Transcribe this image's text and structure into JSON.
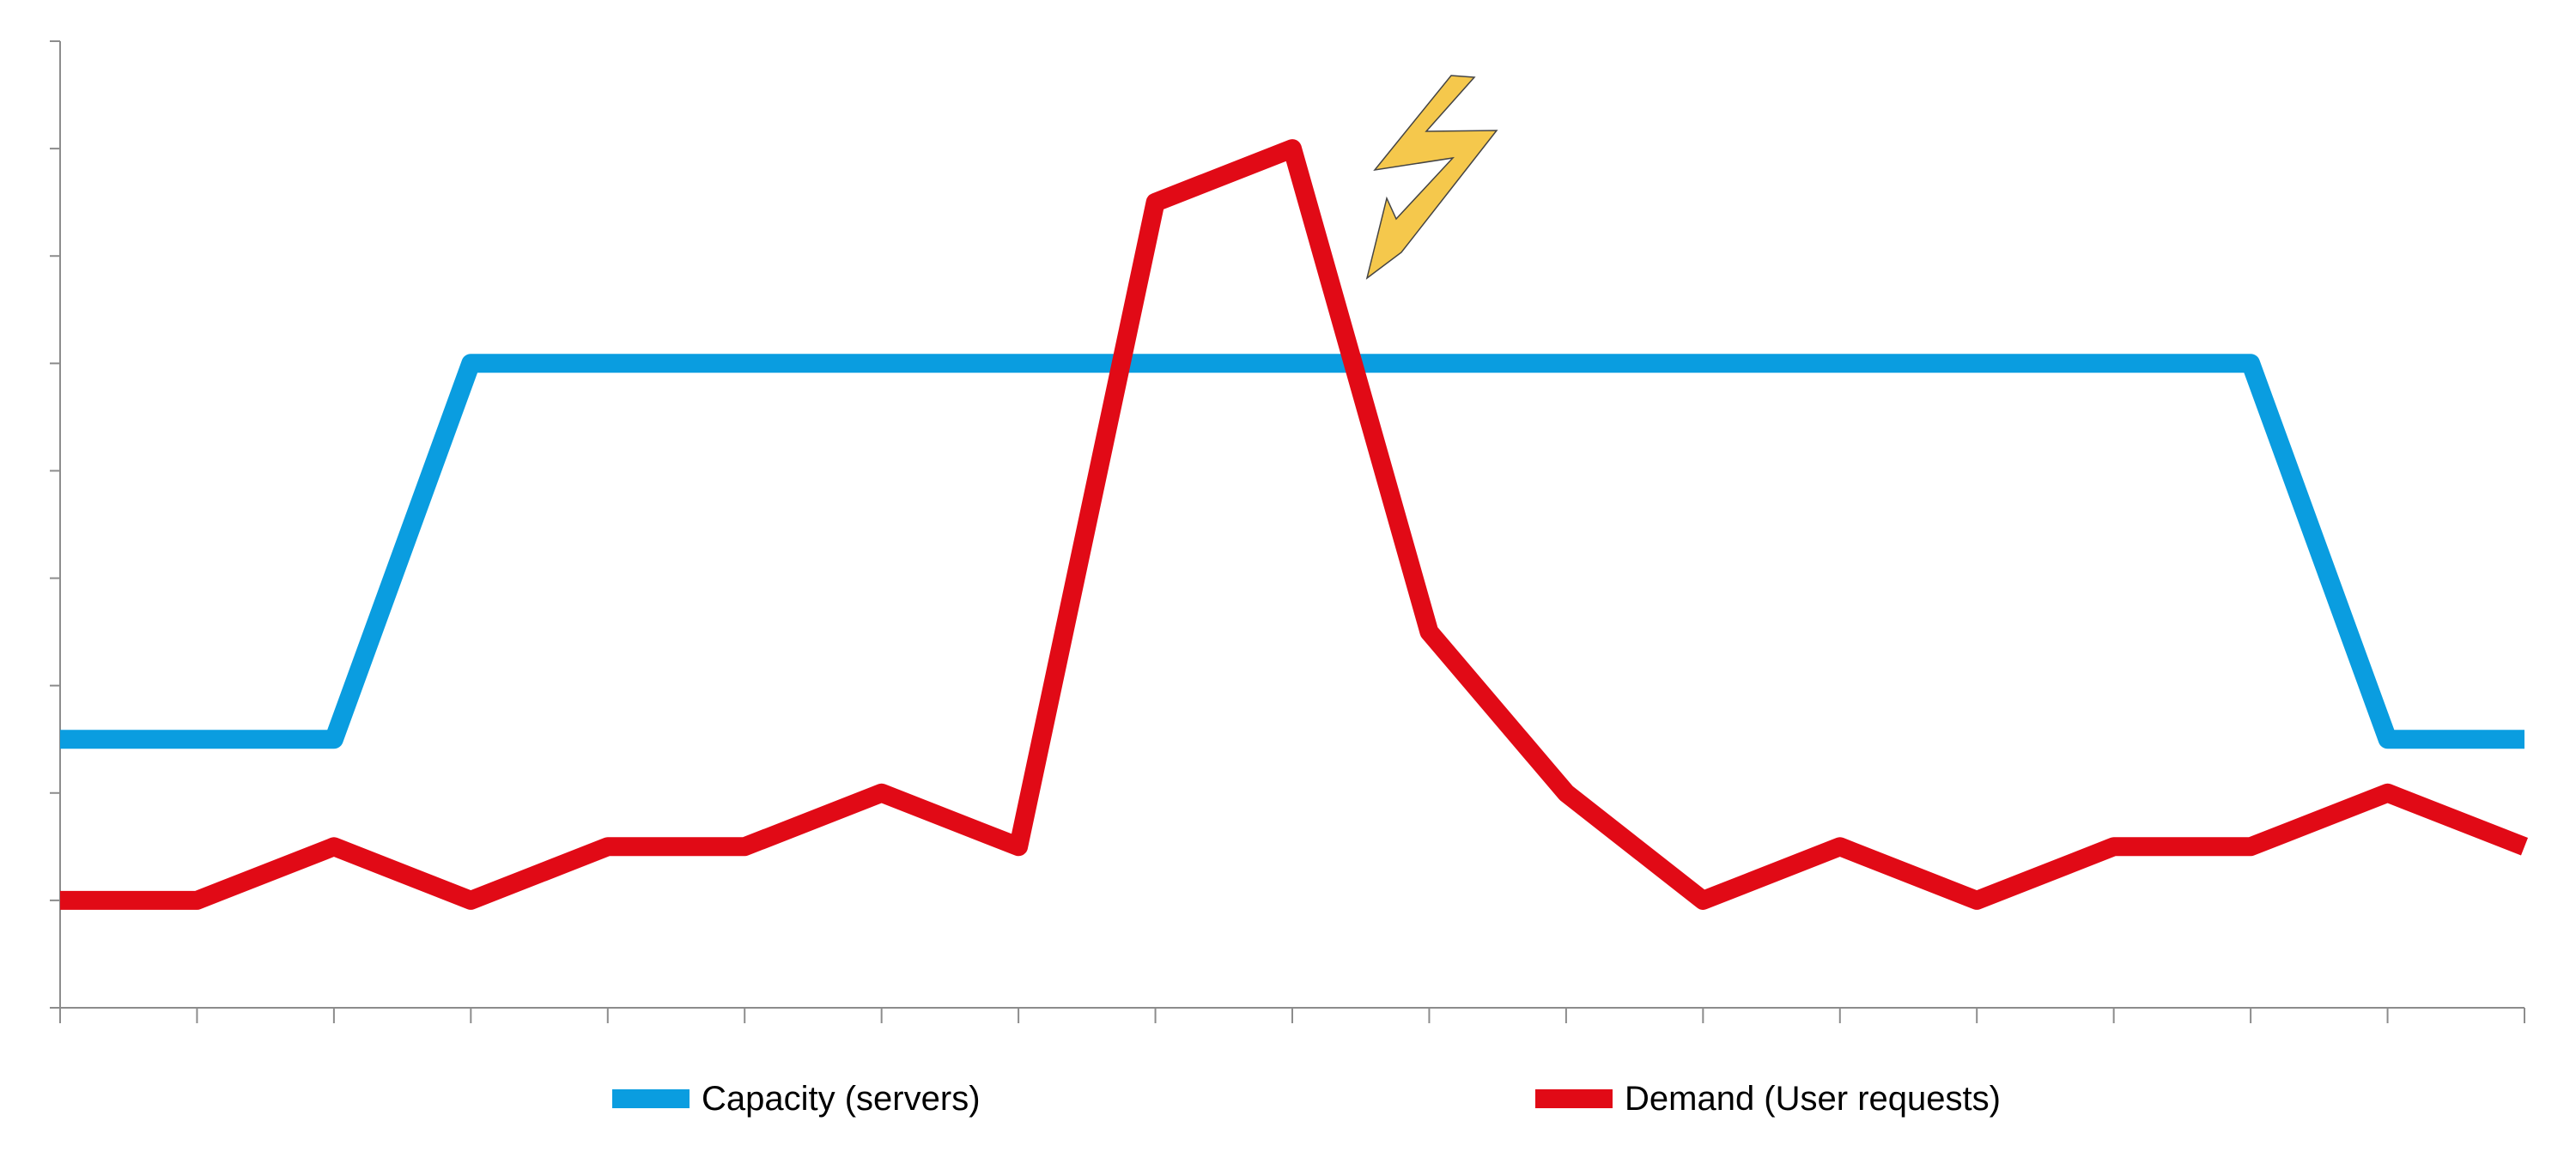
{
  "chart_data": {
    "type": "line",
    "title": "",
    "xlabel": "",
    "ylabel": "",
    "x": [
      1,
      2,
      3,
      4,
      5,
      6,
      7,
      8,
      9,
      10,
      11,
      12,
      13,
      14,
      15,
      16,
      17,
      18,
      19
    ],
    "ylim": [
      0,
      9
    ],
    "x_ticks": 19,
    "y_ticks": 10,
    "grid": false,
    "legend": "bottom",
    "series": [
      {
        "name": "Capacity (servers)",
        "color": "#0A9DE0",
        "values": [
          2.5,
          2.5,
          2.5,
          6,
          6,
          6,
          6,
          6,
          6,
          6,
          6,
          6,
          6,
          6,
          6,
          6,
          6,
          2.5,
          2.5
        ]
      },
      {
        "name": "Demand (User requests)",
        "color": "#E10A16",
        "values": [
          1,
          1,
          1.5,
          1,
          1.5,
          1.5,
          2,
          1.5,
          7.5,
          8,
          3.5,
          2,
          1,
          1.5,
          1,
          1.5,
          1.5,
          2,
          1.5
        ]
      }
    ],
    "annotation": {
      "icon": "lightning-bolt-icon",
      "color": "#F5C84C",
      "near": "demand peak"
    }
  }
}
